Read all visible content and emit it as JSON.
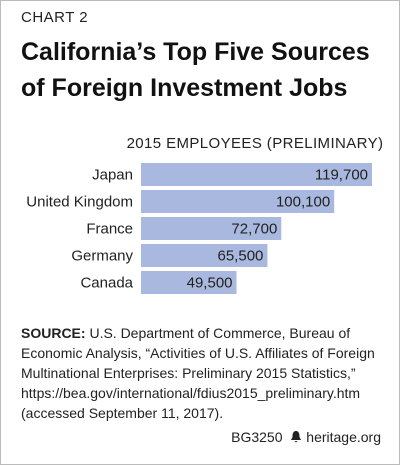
{
  "chart_data": {
    "type": "bar",
    "orientation": "horizontal",
    "label": "CHART 2",
    "title": "California’s Top Five Sources of Foreign Investment Jobs",
    "subtitle": "2015 EMPLOYEES (PRELIMINARY)",
    "categories": [
      "Japan",
      "United Kingdom",
      "France",
      "Germany",
      "Canada"
    ],
    "values": [
      119700,
      100100,
      72700,
      65500,
      49500
    ],
    "value_labels": [
      "119,700",
      "100,100",
      "72,700",
      "65,500",
      "49,500"
    ],
    "color": "#a9b8de",
    "source_label": "SOURCE:",
    "source": "U.S. Department of Commerce, Bureau of Economic Analysis, “Activities of U.S. Affiliates of Foreign Multinational Enterprises: Preliminary 2015 Statistics,” https://bea.gov/international/fdius2015_preliminary.htm (accessed September 11, 2017).",
    "report_id": "BG3250",
    "site": "heritage.org"
  }
}
